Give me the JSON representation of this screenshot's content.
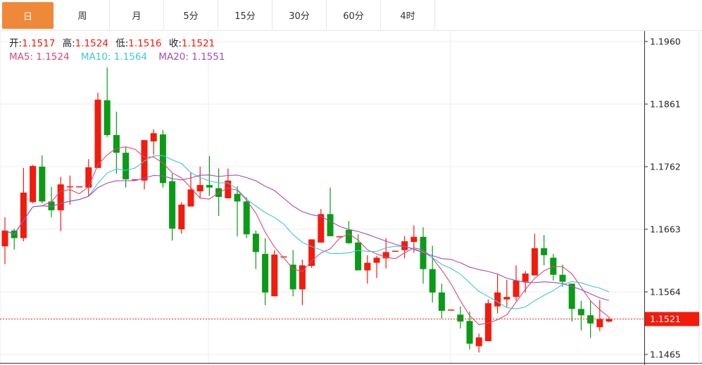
{
  "tabs": [
    "日",
    "周",
    "月",
    "5分",
    "15分",
    "30分",
    "60分",
    "4时"
  ],
  "active_tab": 0,
  "ohlc_legend": {
    "open_label": "开:",
    "open": "1.1517",
    "high_label": "高:",
    "high": "1.1524",
    "low_label": "低:",
    "low": "1.1516",
    "close_label": "收:",
    "close": "1.1521"
  },
  "ma_legend": {
    "ma5": "MA5: 1.1524",
    "ma10": "MA10: 1.1564",
    "ma20": "MA20: 1.1551"
  },
  "colors": {
    "up": "#f21b0c",
    "down": "#0b9b16",
    "ma5": "#e0457b",
    "ma10": "#3cc8d8",
    "ma20": "#a24bc2",
    "active_tab": "#f0883a",
    "label_dark": "#222222"
  },
  "chart_data": {
    "type": "candlestick",
    "ylim": [
      1.1445,
      1.198
    ],
    "y_ticks": [
      "1.1960",
      "1.1861",
      "1.1762",
      "1.1663",
      "1.1564",
      "1.1465"
    ],
    "last_price": "1.1521",
    "grid": true,
    "candles": [
      [
        1.1636,
        1.1682,
        1.1608,
        1.1661
      ],
      [
        1.1661,
        1.1664,
        1.1631,
        1.1649
      ],
      [
        1.1649,
        1.176,
        1.1644,
        1.1721
      ],
      [
        1.1706,
        1.1765,
        1.1704,
        1.1763
      ],
      [
        1.1762,
        1.178,
        1.1704,
        1.1707
      ],
      [
        1.1707,
        1.173,
        1.1682,
        1.1693
      ],
      [
        1.1693,
        1.1746,
        1.166,
        1.1734
      ],
      [
        1.1731,
        1.1748,
        1.1702,
        1.1731
      ],
      [
        1.1731,
        1.1731,
        1.1731,
        1.1731
      ],
      [
        1.1729,
        1.1774,
        1.1716,
        1.1761
      ],
      [
        1.176,
        1.1879,
        1.176,
        1.1868
      ],
      [
        1.1867,
        1.1919,
        1.1809,
        1.1812
      ],
      [
        1.1812,
        1.1849,
        1.1751,
        1.1784
      ],
      [
        1.1784,
        1.1793,
        1.1729,
        1.1742
      ],
      [
        1.1742,
        1.1742,
        1.1742,
        1.1742
      ],
      [
        1.174,
        1.1804,
        1.1726,
        1.1804
      ],
      [
        1.1802,
        1.1821,
        1.1781,
        1.1815
      ],
      [
        1.1813,
        1.182,
        1.1729,
        1.1736
      ],
      [
        1.1739,
        1.1751,
        1.1645,
        1.1664
      ],
      [
        1.1663,
        1.1706,
        1.1656,
        1.1702
      ],
      [
        1.1699,
        1.1753,
        1.1699,
        1.1726
      ],
      [
        1.1723,
        1.1762,
        1.1712,
        1.1733
      ],
      [
        1.1733,
        1.1779,
        1.1716,
        1.1729
      ],
      [
        1.1728,
        1.1759,
        1.1684,
        1.1714
      ],
      [
        1.1712,
        1.1759,
        1.1712,
        1.174
      ],
      [
        1.1719,
        1.1731,
        1.1652,
        1.1707
      ],
      [
        1.1707,
        1.1714,
        1.1649,
        1.1655
      ],
      [
        1.1656,
        1.1661,
        1.16,
        1.1627
      ],
      [
        1.1624,
        1.1649,
        1.1543,
        1.1563
      ],
      [
        1.1557,
        1.163,
        1.1557,
        1.1623
      ],
      [
        1.162,
        1.162,
        1.162,
        1.162
      ],
      [
        1.1607,
        1.163,
        1.1557,
        1.1568
      ],
      [
        1.1568,
        1.1615,
        1.1543,
        1.1606
      ],
      [
        1.1605,
        1.1647,
        1.1602,
        1.1647
      ],
      [
        1.1642,
        1.1695,
        1.1642,
        1.1687
      ],
      [
        1.1687,
        1.1729,
        1.1652,
        1.1652
      ],
      [
        1.1652,
        1.1652,
        1.1652,
        1.1652
      ],
      [
        1.1662,
        1.1676,
        1.164,
        1.1641
      ],
      [
        1.1642,
        1.1655,
        1.1598,
        1.1598
      ],
      [
        1.1598,
        1.1622,
        1.1577,
        1.161
      ],
      [
        1.161,
        1.1621,
        1.1586,
        1.1618
      ],
      [
        1.1617,
        1.1649,
        1.1601,
        1.1627
      ],
      [
        1.1629,
        1.1629,
        1.1629,
        1.1629
      ],
      [
        1.163,
        1.1652,
        1.1617,
        1.1644
      ],
      [
        1.1643,
        1.1669,
        1.1626,
        1.1651
      ],
      [
        1.1651,
        1.1666,
        1.1577,
        1.16
      ],
      [
        1.16,
        1.1637,
        1.1547,
        1.1563
      ],
      [
        1.1563,
        1.1577,
        1.1522,
        1.1534
      ],
      [
        1.1536,
        1.1536,
        1.1536,
        1.1536
      ],
      [
        1.1528,
        1.1541,
        1.1506,
        1.1517
      ],
      [
        1.1518,
        1.1533,
        1.1473,
        1.1482
      ],
      [
        1.1478,
        1.1498,
        1.1468,
        1.1492
      ],
      [
        1.1486,
        1.1552,
        1.1486,
        1.1546
      ],
      [
        1.1541,
        1.1591,
        1.153,
        1.1563
      ],
      [
        1.1552,
        1.1583,
        1.154,
        1.1556
      ],
      [
        1.1556,
        1.1606,
        1.155,
        1.1582
      ],
      [
        1.158,
        1.1597,
        1.1563,
        1.1593
      ],
      [
        1.159,
        1.1656,
        1.159,
        1.1633
      ],
      [
        1.1633,
        1.1654,
        1.1606,
        1.1622
      ],
      [
        1.1618,
        1.1624,
        1.1582,
        1.1591
      ],
      [
        1.1591,
        1.1607,
        1.1572,
        1.158
      ],
      [
        1.1577,
        1.1577,
        1.1517,
        1.1537
      ],
      [
        1.1537,
        1.155,
        1.1503,
        1.1527
      ],
      [
        1.1527,
        1.155,
        1.1491,
        1.1514
      ],
      [
        1.1508,
        1.1551,
        1.1502,
        1.1521
      ],
      [
        1.1517,
        1.1524,
        1.1516,
        1.1521
      ]
    ],
    "ma_periods": [
      5,
      10,
      20
    ]
  }
}
